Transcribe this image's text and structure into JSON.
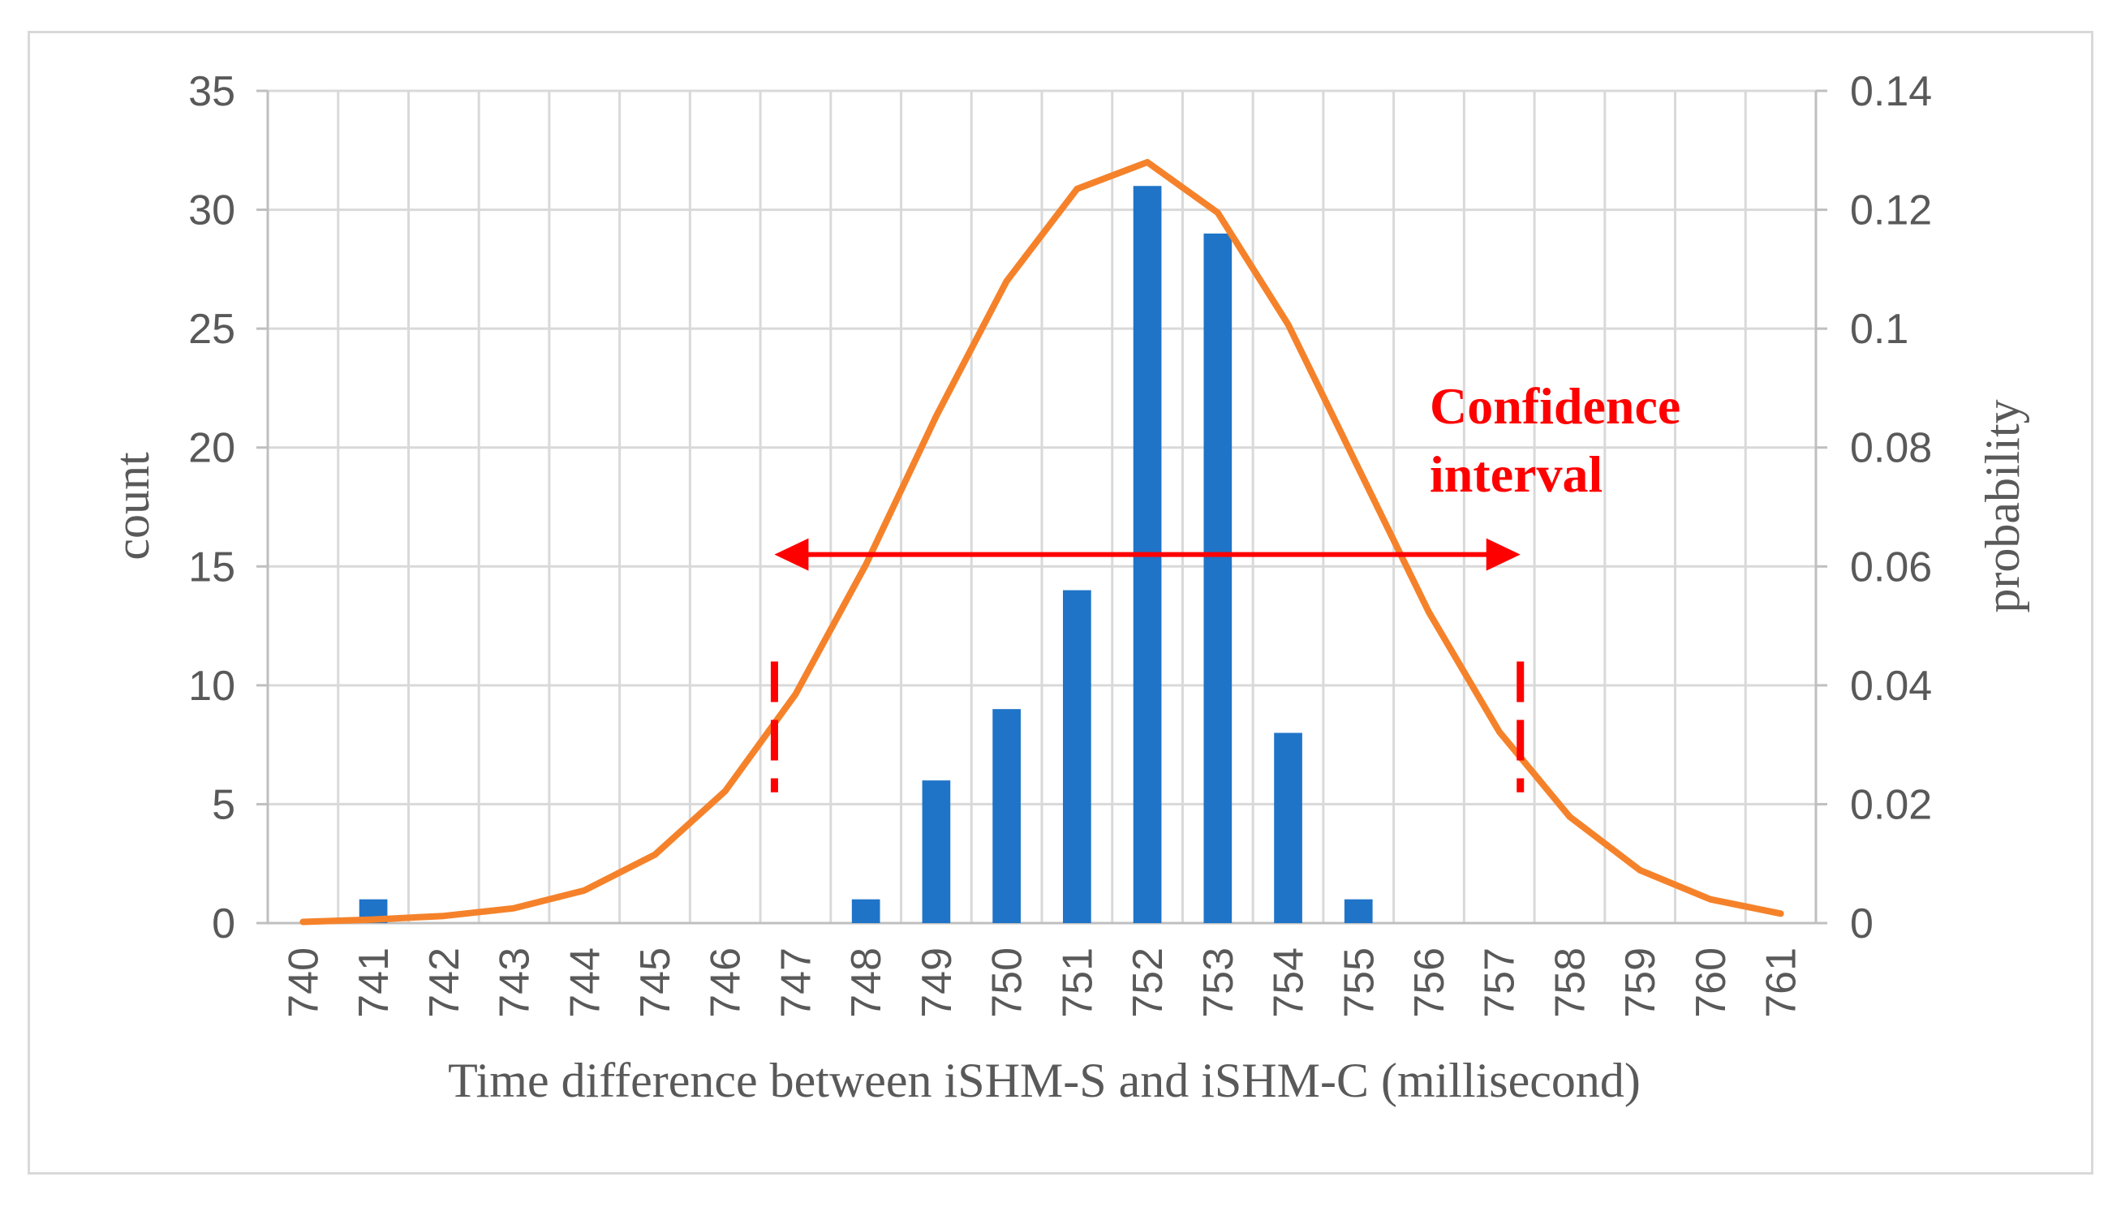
{
  "chart_data": {
    "type": "bar",
    "x_categories": [
      "740",
      "741",
      "742",
      "743",
      "744",
      "745",
      "746",
      "747",
      "748",
      "749",
      "750",
      "751",
      "752",
      "753",
      "754",
      "755",
      "756",
      "757",
      "758",
      "759",
      "760",
      "761"
    ],
    "series": [
      {
        "type": "bar",
        "axis": "left",
        "color": "#1f74c8",
        "values": [
          0,
          1,
          0,
          0,
          0,
          0,
          0,
          0,
          1,
          6,
          9,
          14,
          31,
          29,
          8,
          1,
          0,
          0,
          0,
          0,
          0,
          0
        ]
      },
      {
        "type": "line",
        "axis": "right",
        "color": "#f5822a",
        "values": [
          0.0002,
          0.0006,
          0.0012,
          0.0025,
          0.0055,
          0.0115,
          0.0222,
          0.0385,
          0.0603,
          0.0853,
          0.108,
          0.1235,
          0.128,
          0.1195,
          0.1007,
          0.0765,
          0.0523,
          0.0322,
          0.0179,
          0.0089,
          0.004,
          0.0016
        ]
      }
    ],
    "xlabel": "Time difference between iSHM-S and iSHM-C (millisecond)",
    "ylabel_left": "count",
    "ylabel_right": "probability",
    "y_left_range": [
      0,
      35
    ],
    "y_left_ticks": [
      "0",
      "5",
      "10",
      "15",
      "20",
      "25",
      "30",
      "35"
    ],
    "y_right_range": [
      0,
      0.14
    ],
    "y_right_ticks": [
      "0",
      "0.02",
      "0.04",
      "0.06",
      "0.08",
      "0.1",
      "0.12",
      "0.14"
    ],
    "grid": true,
    "annotation": {
      "text_line1": "Confidence",
      "text_line2": "interval",
      "color": "#ff0000",
      "interval_x": [
        746.7,
        757.3
      ],
      "arrow_y_left": 15.5,
      "marker_y_left": [
        5.5,
        11
      ]
    }
  }
}
